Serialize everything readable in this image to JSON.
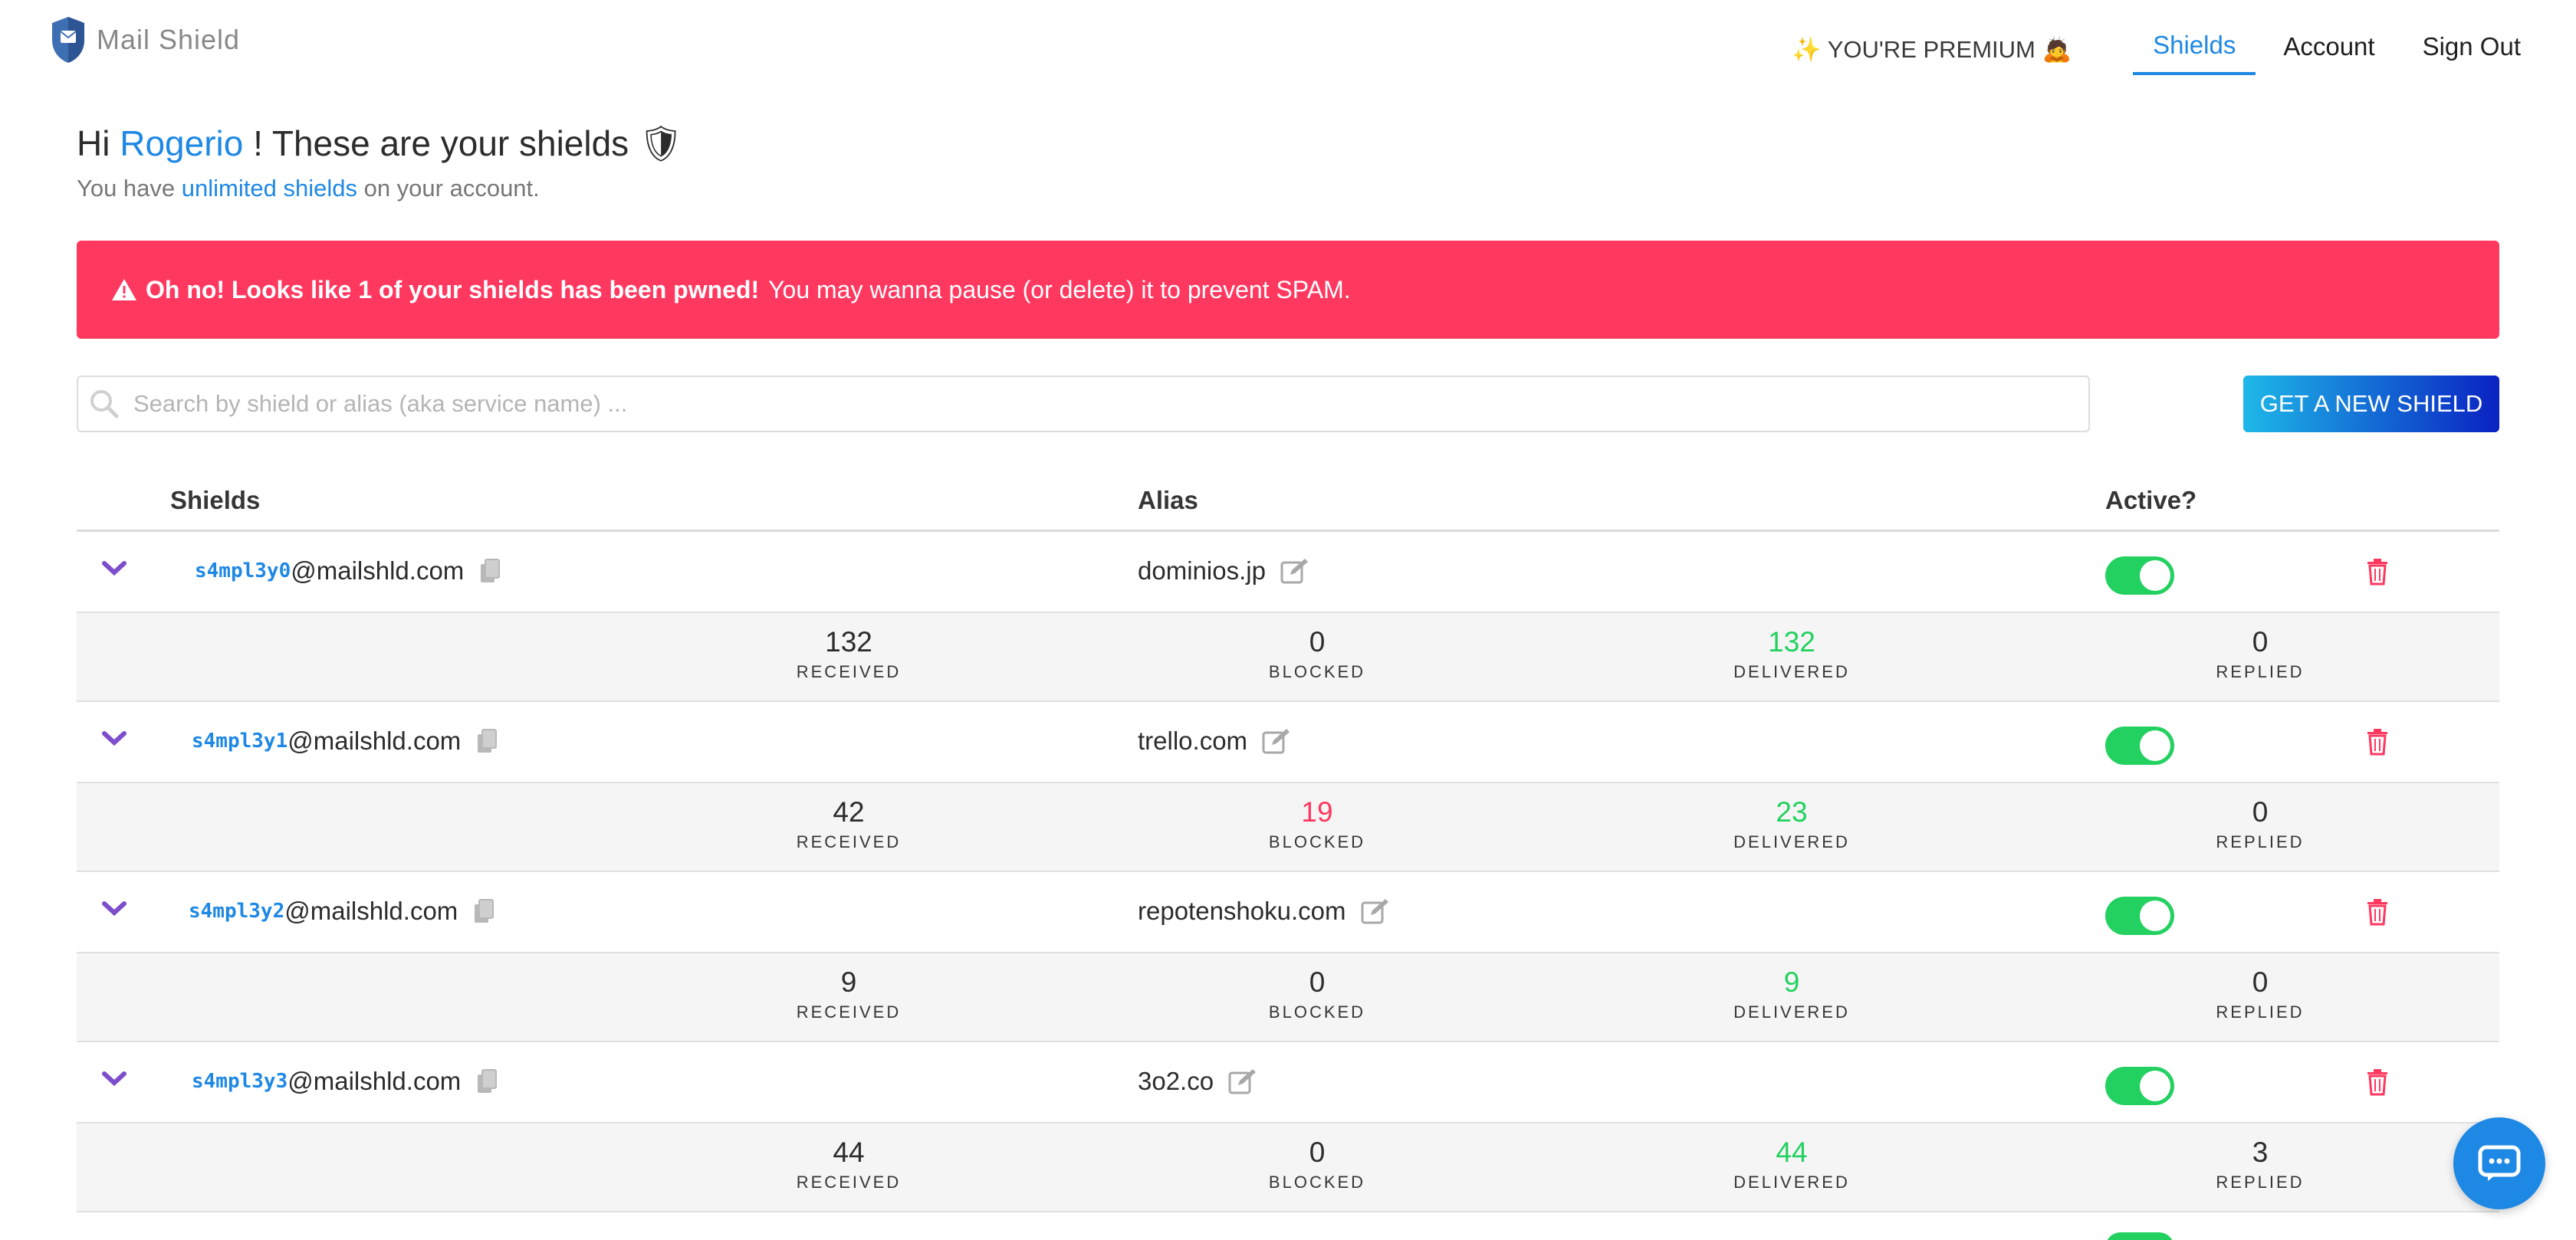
{
  "brand": {
    "name": "Mail Shield"
  },
  "nav": {
    "premium": "✨ YOU'RE PREMIUM 🙇",
    "links": [
      "Shields",
      "Account",
      "Sign Out"
    ]
  },
  "header": {
    "hi": "Hi",
    "user": "Rogerio",
    "rest": "! These are your shields 🛡",
    "sub_prefix": "You have",
    "sub_link": "unlimited shields",
    "sub_suffix": "on your account."
  },
  "alert": {
    "strong": "Oh no! Looks like 1 of your shields has been pwned!",
    "text": "You may wanna pause (or delete) it to prevent SPAM."
  },
  "search": {
    "placeholder": "Search by shield or alias (aka service name) ..."
  },
  "new_shield_button": "GET A NEW SHIELD",
  "table": {
    "headers": {
      "shields": "Shields",
      "alias": "Alias",
      "active": "Active?"
    },
    "stat_labels": {
      "received": "RECEIVED",
      "blocked": "BLOCKED",
      "delivered": "DELIVERED",
      "replied": "REPLIED"
    },
    "rows": [
      {
        "prefix": "s4mpl3y0",
        "domain": "@mailshld.com",
        "alias": "dominios.jp",
        "active": true,
        "received": "132",
        "blocked": "0",
        "delivered": "132",
        "replied": "0"
      },
      {
        "prefix": "s4mpl3y1",
        "domain": "@mailshld.com",
        "alias": "trello.com",
        "active": true,
        "received": "42",
        "blocked": "19",
        "delivered": "23",
        "replied": "0"
      },
      {
        "prefix": "s4mpl3y2",
        "domain": "@mailshld.com",
        "alias": "repotenshoku.com",
        "active": true,
        "received": "9",
        "blocked": "0",
        "delivered": "9",
        "replied": "0"
      },
      {
        "prefix": "s4mpl3y3",
        "domain": "@mailshld.com",
        "alias": "3o2.co",
        "active": true,
        "received": "44",
        "blocked": "0",
        "delivered": "44",
        "replied": "3"
      }
    ]
  }
}
